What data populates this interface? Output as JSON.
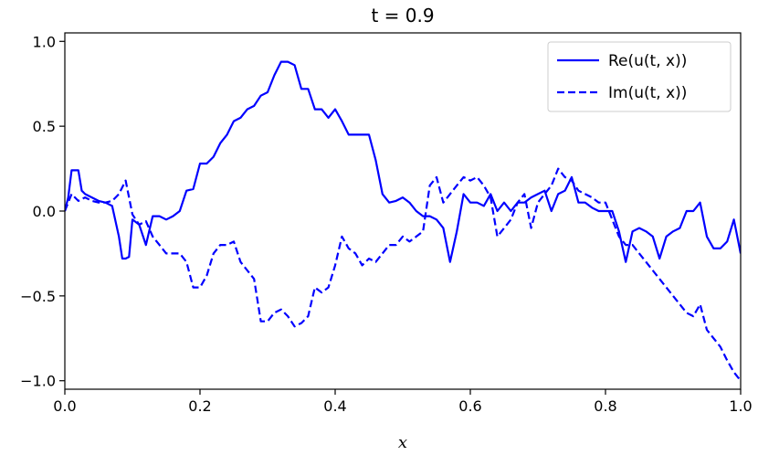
{
  "chart_data": {
    "type": "line",
    "title": "t = 0.9",
    "xlabel": "x",
    "ylabel": "",
    "xlim": [
      0.0,
      1.0
    ],
    "ylim": [
      -1.05,
      1.05
    ],
    "xticks": [
      0.0,
      0.2,
      0.4,
      0.6,
      0.8,
      1.0
    ],
    "xtick_labels": [
      "0.0",
      "0.2",
      "0.4",
      "0.6",
      "0.8",
      "1.0"
    ],
    "yticks": [
      1.0,
      0.5,
      0.0,
      -0.5,
      -1.0
    ],
    "ytick_labels": [
      "1.0",
      "0.5",
      "0.0",
      "−0.5",
      "−1.0"
    ],
    "grid": false,
    "legend_position": "top-right",
    "series": [
      {
        "name": "Re(u(t, x))",
        "color": "#0000ff",
        "style": "solid",
        "x": [
          0.0,
          0.005,
          0.01,
          0.015,
          0.02,
          0.025,
          0.03,
          0.04,
          0.05,
          0.06,
          0.07,
          0.08,
          0.085,
          0.09,
          0.095,
          0.1,
          0.11,
          0.12,
          0.13,
          0.14,
          0.15,
          0.16,
          0.17,
          0.18,
          0.19,
          0.2,
          0.21,
          0.22,
          0.23,
          0.24,
          0.25,
          0.26,
          0.27,
          0.28,
          0.29,
          0.3,
          0.31,
          0.32,
          0.33,
          0.34,
          0.35,
          0.36,
          0.37,
          0.38,
          0.39,
          0.4,
          0.41,
          0.42,
          0.43,
          0.44,
          0.45,
          0.46,
          0.47,
          0.48,
          0.49,
          0.5,
          0.51,
          0.52,
          0.53,
          0.54,
          0.55,
          0.56,
          0.57,
          0.58,
          0.59,
          0.6,
          0.61,
          0.62,
          0.63,
          0.64,
          0.65,
          0.66,
          0.67,
          0.68,
          0.69,
          0.7,
          0.71,
          0.72,
          0.73,
          0.74,
          0.75,
          0.76,
          0.77,
          0.78,
          0.79,
          0.8,
          0.81,
          0.82,
          0.83,
          0.84,
          0.85,
          0.86,
          0.87,
          0.88,
          0.89,
          0.9,
          0.91,
          0.92,
          0.93,
          0.94,
          0.95,
          0.96,
          0.97,
          0.98,
          0.99,
          1.0
        ],
        "y": [
          0.0,
          0.08,
          0.24,
          0.24,
          0.24,
          0.12,
          0.1,
          0.08,
          0.06,
          0.05,
          0.03,
          -0.15,
          -0.28,
          -0.28,
          -0.27,
          -0.05,
          -0.08,
          -0.2,
          -0.03,
          -0.03,
          -0.05,
          -0.03,
          0.0,
          0.12,
          0.13,
          0.28,
          0.28,
          0.32,
          0.4,
          0.45,
          0.53,
          0.55,
          0.6,
          0.62,
          0.68,
          0.7,
          0.8,
          0.88,
          0.88,
          0.86,
          0.72,
          0.72,
          0.6,
          0.6,
          0.55,
          0.6,
          0.53,
          0.45,
          0.45,
          0.45,
          0.45,
          0.3,
          0.1,
          0.05,
          0.06,
          0.08,
          0.05,
          0.0,
          -0.03,
          -0.03,
          -0.05,
          -0.1,
          -0.3,
          -0.12,
          0.1,
          0.05,
          0.05,
          0.03,
          0.1,
          0.0,
          0.05,
          0.0,
          0.05,
          0.05,
          0.08,
          0.1,
          0.12,
          0.0,
          0.1,
          0.12,
          0.2,
          0.05,
          0.05,
          0.02,
          0.0,
          0.0,
          0.0,
          -0.12,
          -0.3,
          -0.12,
          -0.1,
          -0.12,
          -0.15,
          -0.28,
          -0.15,
          -0.12,
          -0.1,
          0.0,
          0.0,
          0.05,
          -0.15,
          -0.22,
          -0.22,
          -0.18,
          -0.05,
          -0.25
        ]
      },
      {
        "name": "Im(u(t, x))",
        "color": "#0000ff",
        "style": "dashed",
        "x": [
          0.0,
          0.01,
          0.02,
          0.03,
          0.04,
          0.05,
          0.06,
          0.07,
          0.08,
          0.09,
          0.1,
          0.11,
          0.12,
          0.13,
          0.14,
          0.15,
          0.16,
          0.17,
          0.18,
          0.19,
          0.2,
          0.21,
          0.22,
          0.23,
          0.24,
          0.25,
          0.26,
          0.27,
          0.28,
          0.29,
          0.3,
          0.31,
          0.32,
          0.33,
          0.34,
          0.35,
          0.36,
          0.37,
          0.38,
          0.39,
          0.4,
          0.41,
          0.42,
          0.43,
          0.44,
          0.45,
          0.46,
          0.47,
          0.48,
          0.49,
          0.5,
          0.51,
          0.52,
          0.53,
          0.54,
          0.55,
          0.56,
          0.57,
          0.58,
          0.59,
          0.6,
          0.61,
          0.62,
          0.63,
          0.64,
          0.65,
          0.66,
          0.67,
          0.68,
          0.69,
          0.7,
          0.71,
          0.72,
          0.73,
          0.74,
          0.75,
          0.76,
          0.77,
          0.78,
          0.79,
          0.8,
          0.81,
          0.82,
          0.83,
          0.84,
          0.85,
          0.86,
          0.87,
          0.88,
          0.89,
          0.9,
          0.91,
          0.92,
          0.93,
          0.94,
          0.95,
          0.96,
          0.97,
          0.98,
          0.99,
          1.0
        ],
        "y": [
          0.0,
          0.1,
          0.06,
          0.08,
          0.06,
          0.05,
          0.05,
          0.06,
          0.1,
          0.18,
          -0.02,
          -0.08,
          -0.06,
          -0.15,
          -0.2,
          -0.25,
          -0.25,
          -0.25,
          -0.3,
          -0.45,
          -0.45,
          -0.38,
          -0.25,
          -0.2,
          -0.2,
          -0.18,
          -0.3,
          -0.35,
          -0.4,
          -0.65,
          -0.65,
          -0.6,
          -0.58,
          -0.62,
          -0.68,
          -0.66,
          -0.62,
          -0.45,
          -0.48,
          -0.45,
          -0.32,
          -0.15,
          -0.22,
          -0.25,
          -0.32,
          -0.28,
          -0.3,
          -0.25,
          -0.2,
          -0.2,
          -0.15,
          -0.18,
          -0.15,
          -0.12,
          0.15,
          0.2,
          0.05,
          0.1,
          0.15,
          0.2,
          0.18,
          0.2,
          0.15,
          0.08,
          -0.15,
          -0.1,
          -0.05,
          0.05,
          0.1,
          -0.1,
          0.05,
          0.1,
          0.15,
          0.25,
          0.2,
          0.18,
          0.12,
          0.1,
          0.08,
          0.05,
          0.05,
          -0.05,
          -0.15,
          -0.2,
          -0.2,
          -0.25,
          -0.3,
          -0.35,
          -0.4,
          -0.45,
          -0.5,
          -0.55,
          -0.6,
          -0.62,
          -0.55,
          -0.7,
          -0.75,
          -0.8,
          -0.88,
          -0.95,
          -1.0
        ]
      }
    ]
  }
}
